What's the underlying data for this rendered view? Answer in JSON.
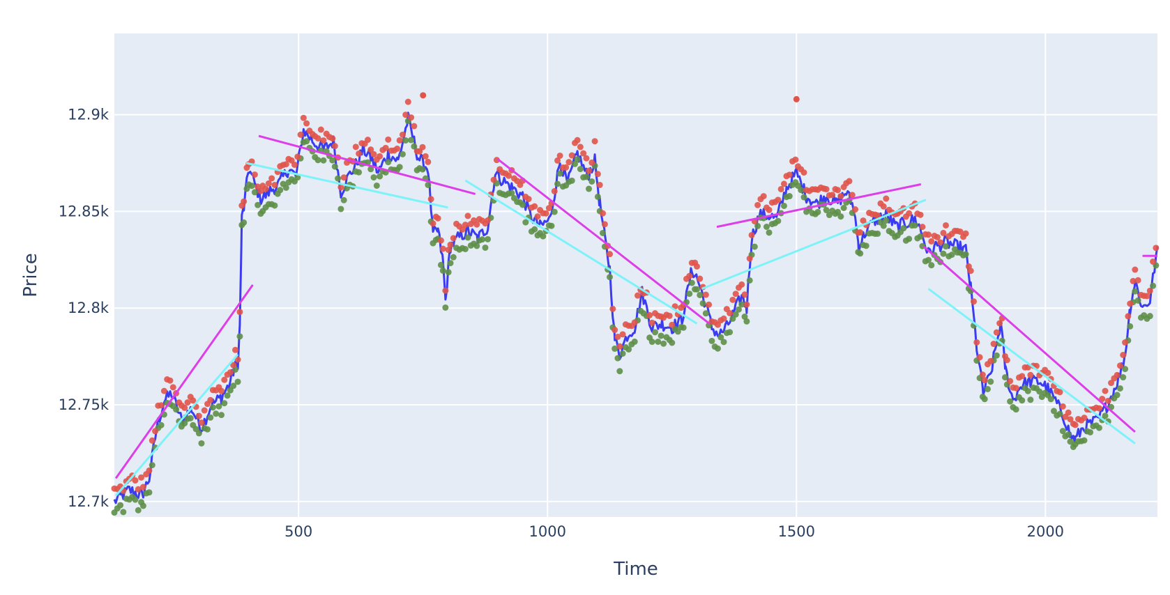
{
  "chart_data": {
    "type": "line",
    "title": "",
    "xlabel": "Time",
    "ylabel": "Price",
    "xlim": [
      130,
      2225
    ],
    "ylim": [
      12692,
      12942
    ],
    "x_ticks": [
      500,
      1000,
      1500,
      2000
    ],
    "x_tick_labels": [
      "500",
      "1000",
      "1500",
      "2000"
    ],
    "y_ticks": [
      12700,
      12750,
      12800,
      12850,
      12900
    ],
    "y_tick_labels": [
      "12.7k",
      "12.75k",
      "12.8k",
      "12.85k",
      "12.9k"
    ],
    "grid": true,
    "legend": "none",
    "colors": {
      "background": "#e5ecf6",
      "grid": "#ffffff",
      "price_line": "#3b3bef",
      "high_points": "#e0544a",
      "low_points": "#5e8f48",
      "resistance_lines": "#dc3ee8",
      "support_lines": "#7df2f8"
    },
    "anchors": [
      [
        130,
        12700
      ],
      [
        160,
        12706
      ],
      [
        185,
        12703
      ],
      [
        200,
        12712
      ],
      [
        215,
        12738
      ],
      [
        230,
        12752
      ],
      [
        245,
        12756
      ],
      [
        265,
        12742
      ],
      [
        285,
        12748
      ],
      [
        305,
        12738
      ],
      [
        325,
        12750
      ],
      [
        345,
        12754
      ],
      [
        360,
        12760
      ],
      [
        370,
        12768
      ],
      [
        378,
        12772
      ],
      [
        382,
        12790
      ],
      [
        386,
        12846
      ],
      [
        390,
        12852
      ],
      [
        400,
        12872
      ],
      [
        412,
        12864
      ],
      [
        425,
        12856
      ],
      [
        440,
        12860
      ],
      [
        460,
        12864
      ],
      [
        480,
        12872
      ],
      [
        495,
        12868
      ],
      [
        510,
        12892
      ],
      [
        530,
        12886
      ],
      [
        550,
        12882
      ],
      [
        570,
        12886
      ],
      [
        585,
        12860
      ],
      [
        600,
        12868
      ],
      [
        615,
        12874
      ],
      [
        630,
        12882
      ],
      [
        645,
        12878
      ],
      [
        660,
        12870
      ],
      [
        680,
        12880
      ],
      [
        700,
        12876
      ],
      [
        720,
        12898
      ],
      [
        740,
        12878
      ],
      [
        760,
        12872
      ],
      [
        770,
        12838
      ],
      [
        780,
        12840
      ],
      [
        790,
        12824
      ],
      [
        795,
        12804
      ],
      [
        805,
        12832
      ],
      [
        820,
        12836
      ],
      [
        840,
        12840
      ],
      [
        860,
        12836
      ],
      [
        880,
        12842
      ],
      [
        895,
        12870
      ],
      [
        910,
        12866
      ],
      [
        930,
        12862
      ],
      [
        950,
        12858
      ],
      [
        965,
        12848
      ],
      [
        985,
        12842
      ],
      [
        1005,
        12846
      ],
      [
        1025,
        12876
      ],
      [
        1040,
        12864
      ],
      [
        1060,
        12880
      ],
      [
        1080,
        12868
      ],
      [
        1095,
        12876
      ],
      [
        1105,
        12854
      ],
      [
        1115,
        12836
      ],
      [
        1125,
        12820
      ],
      [
        1135,
        12784
      ],
      [
        1145,
        12776
      ],
      [
        1160,
        12786
      ],
      [
        1175,
        12790
      ],
      [
        1190,
        12808
      ],
      [
        1210,
        12790
      ],
      [
        1230,
        12792
      ],
      [
        1250,
        12790
      ],
      [
        1270,
        12794
      ],
      [
        1290,
        12820
      ],
      [
        1300,
        12816
      ],
      [
        1315,
        12804
      ],
      [
        1330,
        12790
      ],
      [
        1345,
        12786
      ],
      [
        1360,
        12790
      ],
      [
        1375,
        12798
      ],
      [
        1390,
        12806
      ],
      [
        1400,
        12800
      ],
      [
        1410,
        12836
      ],
      [
        1425,
        12848
      ],
      [
        1445,
        12848
      ],
      [
        1460,
        12846
      ],
      [
        1480,
        12862
      ],
      [
        1500,
        12870
      ],
      [
        1520,
        12858
      ],
      [
        1540,
        12854
      ],
      [
        1560,
        12858
      ],
      [
        1580,
        12854
      ],
      [
        1600,
        12860
      ],
      [
        1615,
        12852
      ],
      [
        1625,
        12832
      ],
      [
        1640,
        12840
      ],
      [
        1660,
        12846
      ],
      [
        1680,
        12848
      ],
      [
        1700,
        12842
      ],
      [
        1720,
        12844
      ],
      [
        1740,
        12846
      ],
      [
        1750,
        12840
      ],
      [
        1765,
        12828
      ],
      [
        1780,
        12832
      ],
      [
        1800,
        12834
      ],
      [
        1820,
        12832
      ],
      [
        1840,
        12830
      ],
      [
        1850,
        12810
      ],
      [
        1862,
        12780
      ],
      [
        1875,
        12756
      ],
      [
        1890,
        12766
      ],
      [
        1910,
        12792
      ],
      [
        1920,
        12768
      ],
      [
        1935,
        12752
      ],
      [
        1950,
        12760
      ],
      [
        1970,
        12762
      ],
      [
        1990,
        12762
      ],
      [
        2005,
        12758
      ],
      [
        2020,
        12752
      ],
      [
        2040,
        12742
      ],
      [
        2050,
        12734
      ],
      [
        2060,
        12732
      ],
      [
        2075,
        12738
      ],
      [
        2090,
        12740
      ],
      [
        2105,
        12742
      ],
      [
        2120,
        12748
      ],
      [
        2135,
        12756
      ],
      [
        2150,
        12766
      ],
      [
        2160,
        12776
      ],
      [
        2170,
        12800
      ],
      [
        2180,
        12814
      ],
      [
        2195,
        12800
      ],
      [
        2210,
        12804
      ],
      [
        2225,
        12832
      ]
    ],
    "price_noise": 3.5,
    "high_offset": 4,
    "low_offset": -4,
    "high_outliers": [
      [
        750,
        12910
      ],
      [
        1500,
        12908
      ]
    ],
    "trend_lines": {
      "resistance": [
        [
          [
            133,
            12712
          ],
          [
            408,
            12812
          ]
        ],
        [
          [
            420,
            12889
          ],
          [
            855,
            12859
          ]
        ],
        [
          [
            900,
            12877
          ],
          [
            1325,
            12792
          ]
        ],
        [
          [
            1340,
            12842
          ],
          [
            1750,
            12864
          ]
        ],
        [
          [
            1755,
            12832
          ],
          [
            2180,
            12736
          ]
        ],
        [
          [
            2195,
            12827
          ],
          [
            2225,
            12827
          ]
        ]
      ],
      "support": [
        [
          [
            133,
            12703
          ],
          [
            378,
            12776
          ]
        ],
        [
          [
            395,
            12875
          ],
          [
            800,
            12852
          ]
        ],
        [
          [
            835,
            12866
          ],
          [
            1300,
            12792
          ]
        ],
        [
          [
            1310,
            12810
          ],
          [
            1760,
            12856
          ]
        ],
        [
          [
            1765,
            12810
          ],
          [
            2180,
            12730
          ]
        ]
      ]
    }
  }
}
